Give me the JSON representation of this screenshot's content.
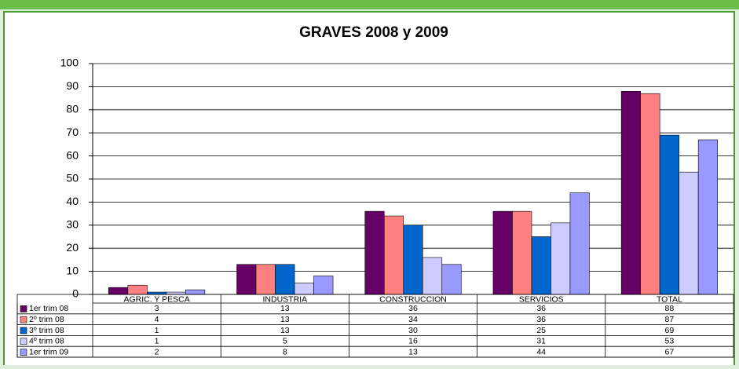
{
  "chart_data": {
    "type": "bar",
    "title": "GRAVES 2008 y 2009",
    "categories": [
      "AGRIC. Y PESCA",
      "INDUSTRIA",
      "CONSTRUCCION",
      "SERVICIOS",
      "TOTAL"
    ],
    "series": [
      {
        "name": "1er trim 08",
        "color": "#660066",
        "values": [
          3,
          13,
          36,
          36,
          88
        ]
      },
      {
        "name": "2º trim 08",
        "color": "#ff8080",
        "values": [
          4,
          13,
          34,
          36,
          87
        ]
      },
      {
        "name": "3º trim 08",
        "color": "#0066cc",
        "values": [
          1,
          13,
          30,
          25,
          69
        ]
      },
      {
        "name": "4º trim 08",
        "color": "#ccccff",
        "values": [
          1,
          5,
          16,
          31,
          53
        ]
      },
      {
        "name": "1er trim 09",
        "color": "#9999ff",
        "values": [
          2,
          8,
          13,
          44,
          67
        ]
      }
    ],
    "ylim": [
      0,
      100
    ],
    "yticks": [
      0,
      10,
      20,
      30,
      40,
      50,
      60,
      70,
      80,
      90,
      100
    ],
    "grid": true
  }
}
